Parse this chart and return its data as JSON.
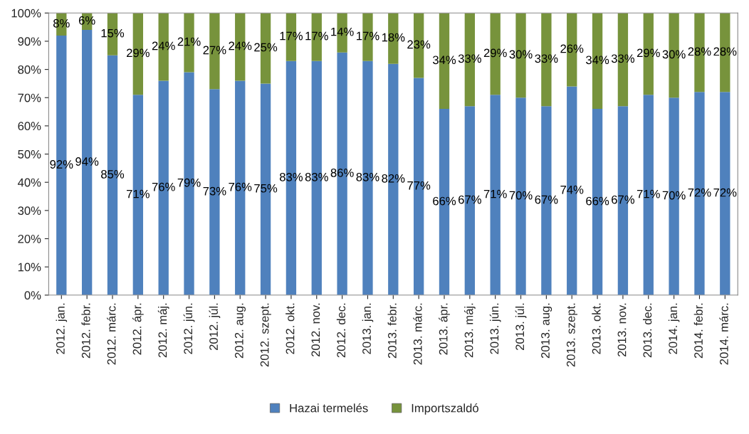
{
  "chart_data": {
    "type": "bar",
    "stacked": true,
    "categories": [
      "2012. jan.",
      "2012. febr.",
      "2012. márc.",
      "2012. ápr.",
      "2012. máj.",
      "2012. jún.",
      "2012. júl.",
      "2012. aug.",
      "2012. szept.",
      "2012. okt.",
      "2012. nov.",
      "2012. dec.",
      "2013. jan.",
      "2013. febr.",
      "2013. márc.",
      "2013. ápr.",
      "2013. máj.",
      "2013. jún.",
      "2013. júl.",
      "2013. aug.",
      "2013. szept.",
      "2013. okt.",
      "2013. nov.",
      "2013. dec.",
      "2014. jan.",
      "2014. febr.",
      "2014. márc."
    ],
    "series": [
      {
        "name": "Hazai termelés",
        "color": "#4f81bd",
        "values": [
          92,
          94,
          85,
          71,
          76,
          79,
          73,
          76,
          75,
          83,
          83,
          86,
          83,
          82,
          77,
          66,
          67,
          71,
          70,
          67,
          74,
          66,
          67,
          71,
          70,
          72,
          72
        ],
        "value_labels": [
          "92%",
          "94%",
          "85%",
          "71%",
          "76%",
          "79%",
          "73%",
          "76%",
          "75%",
          "83%",
          "83%",
          "86%",
          "83%",
          "82%",
          "77%",
          "66%",
          "67%",
          "71%",
          "70%",
          "67%",
          "74%",
          "66%",
          "67%",
          "71%",
          "70%",
          "72%",
          "72%"
        ]
      },
      {
        "name": "Importszaldó",
        "color": "#77933c",
        "values": [
          8,
          6,
          15,
          29,
          24,
          21,
          27,
          24,
          25,
          17,
          17,
          14,
          17,
          18,
          23,
          34,
          33,
          29,
          30,
          33,
          26,
          34,
          33,
          29,
          30,
          28,
          28
        ],
        "value_labels": [
          "8%",
          "6%",
          "15%",
          "29%",
          "24%",
          "21%",
          "27%",
          "24%",
          "25%",
          "17%",
          "17%",
          "14%",
          "17%",
          "18%",
          "23%",
          "34%",
          "33%",
          "29%",
          "30%",
          "33%",
          "26%",
          "34%",
          "33%",
          "29%",
          "30%",
          "28%",
          "28%"
        ]
      }
    ],
    "ylim": [
      0,
      100
    ],
    "yticks": [
      {
        "value": 0,
        "label": "0%"
      },
      {
        "value": 10,
        "label": "10%"
      },
      {
        "value": 20,
        "label": "20%"
      },
      {
        "value": 30,
        "label": "30%"
      },
      {
        "value": 40,
        "label": "40%"
      },
      {
        "value": 50,
        "label": "50%"
      },
      {
        "value": 60,
        "label": "60%"
      },
      {
        "value": 70,
        "label": "70%"
      },
      {
        "value": 80,
        "label": "80%"
      },
      {
        "value": 90,
        "label": "90%"
      },
      {
        "value": 100,
        "label": "100%"
      }
    ],
    "grid": false,
    "legend": "bottom"
  }
}
